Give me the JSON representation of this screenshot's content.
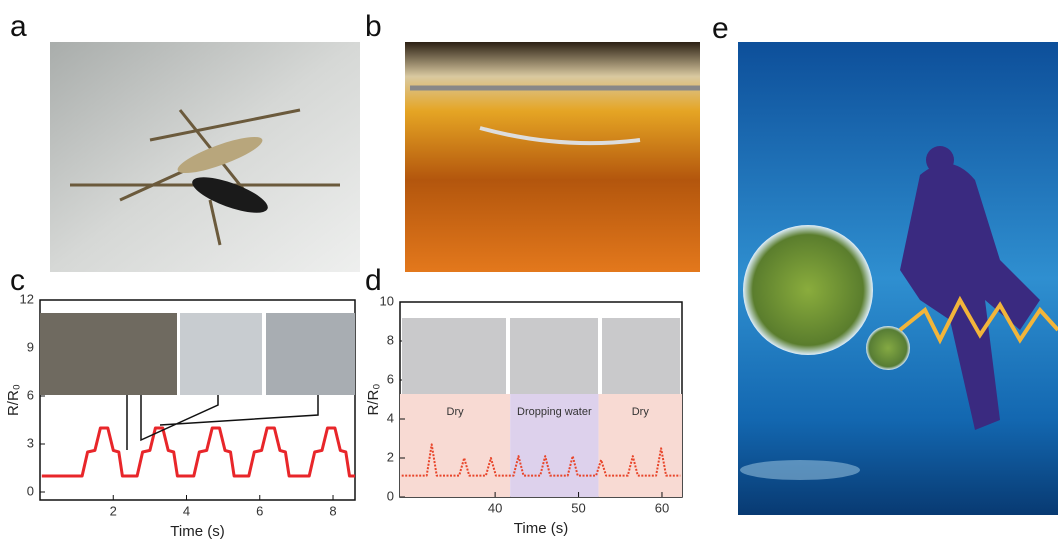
{
  "panel_labels": [
    "a",
    "b",
    "c",
    "d",
    "e"
  ],
  "chart_data": [
    {
      "type": "line",
      "x_label": "Time (s)",
      "y_label": "R/R₀",
      "color": "#e8262a",
      "xlim": [
        0,
        8.6
      ],
      "xticks": [
        2,
        4,
        6,
        8
      ],
      "ylim": [
        -0.5,
        12
      ],
      "yticks": [
        0,
        3,
        6,
        9,
        12
      ],
      "x": [
        0.05,
        1.15,
        1.3,
        1.5,
        1.65,
        1.85,
        2.0,
        2.15,
        2.25,
        2.65,
        2.8,
        3.0,
        3.15,
        3.35,
        3.5,
        3.65,
        3.75,
        4.2,
        4.35,
        4.55,
        4.7,
        4.9,
        5.05,
        5.2,
        5.3,
        5.7,
        5.85,
        6.05,
        6.2,
        6.4,
        6.55,
        6.7,
        6.8,
        7.35,
        7.5,
        7.7,
        7.85,
        8.05,
        8.2,
        8.35,
        8.45,
        8.6
      ],
      "values": [
        1,
        1,
        2.5,
        2.6,
        4,
        4,
        2.6,
        2.5,
        1,
        1,
        2.5,
        2.6,
        4,
        4,
        2.6,
        2.5,
        1,
        1,
        2.5,
        2.6,
        4,
        4,
        2.6,
        2.5,
        1,
        1,
        2.5,
        2.6,
        4,
        4,
        2.6,
        2.5,
        1,
        1,
        2.5,
        2.6,
        4,
        4,
        2.6,
        2.5,
        1,
        1
      ]
    },
    {
      "type": "line",
      "x_label": "Time (s)",
      "y_label": "R/R₀",
      "color": "#e8452a",
      "dashed": true,
      "xlim": [
        28.6,
        62.4
      ],
      "xticks": [
        40,
        50,
        60
      ],
      "ylim": [
        0,
        10
      ],
      "yticks": [
        0,
        2,
        4,
        6,
        8,
        10
      ],
      "regions": [
        {
          "label": "Dry",
          "start": 28.6,
          "end": 41.8,
          "color": "#f8dad3"
        },
        {
          "label": "Dropping water",
          "start": 41.8,
          "end": 52.4,
          "color": "#ddd1ec"
        },
        {
          "label": "Dry",
          "start": 52.4,
          "end": 62.4,
          "color": "#f8dad3"
        }
      ],
      "x": [
        28.8,
        31.8,
        32.4,
        33.0,
        35.7,
        36.3,
        36.9,
        38.9,
        39.5,
        40.1,
        42.2,
        42.8,
        43.4,
        45.4,
        46.0,
        46.6,
        48.7,
        49.3,
        49.9,
        52.1,
        52.7,
        53.3,
        55.9,
        56.5,
        57.1,
        59.3,
        59.9,
        60.5,
        62.2
      ],
      "values": [
        1.1,
        1.1,
        2.7,
        1.1,
        1.1,
        2.0,
        1.1,
        1.1,
        2.0,
        1.1,
        1.1,
        2.1,
        1.1,
        1.1,
        2.1,
        1.1,
        1.1,
        2.1,
        1.1,
        1.1,
        1.9,
        1.1,
        1.1,
        2.1,
        1.1,
        1.1,
        2.5,
        1.1,
        1.1
      ]
    }
  ]
}
